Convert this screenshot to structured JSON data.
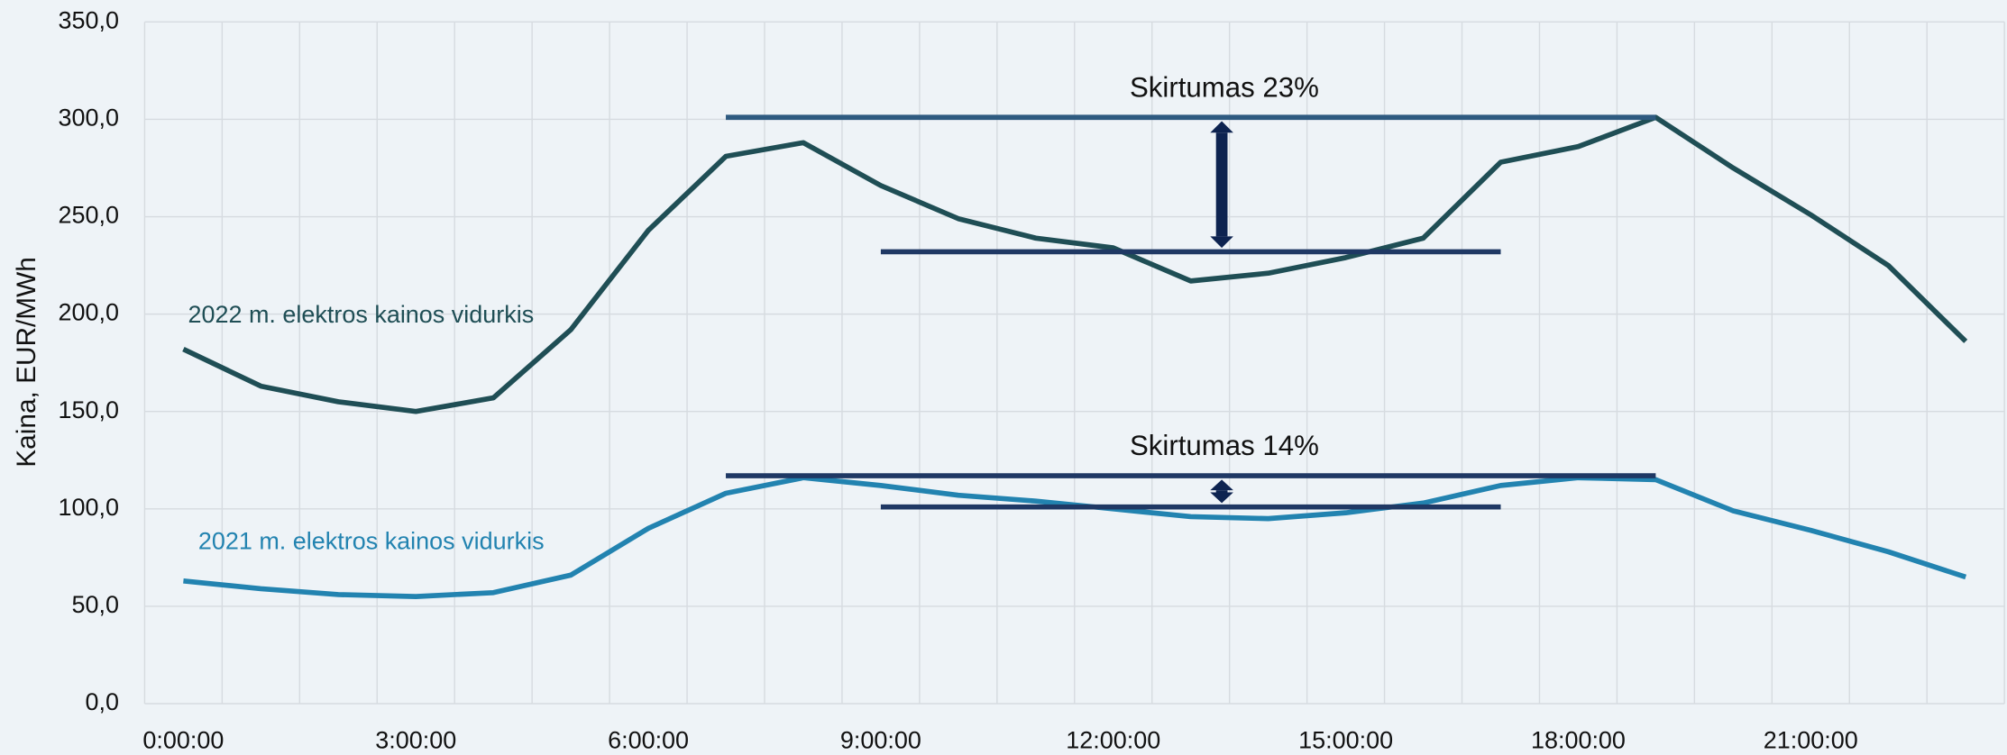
{
  "chart_data": {
    "type": "line",
    "y_label": "Kaina, EUR/MWh",
    "categories": [
      "0:00:00",
      null,
      null,
      "3:00:00",
      null,
      null,
      "6:00:00",
      null,
      null,
      "9:00:00",
      null,
      null,
      "12:00:00",
      null,
      null,
      "15:00:00",
      null,
      null,
      "18:00:00",
      null,
      null,
      "21:00:00",
      null,
      null
    ],
    "series": [
      {
        "name": "2022 m. elektros kainos vidurkis",
        "color": "#1f4e55",
        "values": [
          182,
          163,
          155,
          150,
          157,
          192,
          243,
          281,
          288,
          266,
          249,
          239,
          234,
          217,
          221,
          229,
          239,
          278,
          286,
          301,
          275,
          251,
          225,
          186
        ]
      },
      {
        "name": "2021 m. elektros kainos vidurkis",
        "color": "#2283b0",
        "values": [
          63,
          59,
          56,
          55,
          57,
          66,
          90,
          108,
          116,
          112,
          107,
          104,
          100,
          96,
          95,
          98,
          103,
          112,
          116,
          115,
          99,
          89,
          78,
          65
        ]
      }
    ],
    "comparisons": [
      {
        "label": "Skirtumas 23%",
        "peak": 301,
        "peak_from": 7,
        "peak_to": 19,
        "base": 232,
        "base_from": 9,
        "base_to": 17,
        "peak_color": "#2e5a80",
        "base_color": "#1f3864",
        "arrow_color": "#0d2350"
      },
      {
        "label": "Skirtumas 14%",
        "peak": 117,
        "peak_from": 7,
        "peak_to": 19,
        "base": 101,
        "base_from": 9,
        "base_to": 17,
        "peak_color": "#1f3864",
        "base_color": "#1f3864",
        "arrow_color": "#0d2350"
      }
    ],
    "ylim": [
      0,
      350
    ],
    "yticks": [
      {
        "value": 0,
        "label": "0,0"
      },
      {
        "value": 50,
        "label": "50,0"
      },
      {
        "value": 100,
        "label": "100,0"
      },
      {
        "value": 150,
        "label": "150,0"
      },
      {
        "value": 200,
        "label": "200,0"
      },
      {
        "value": 250,
        "label": "250,0"
      },
      {
        "value": 300,
        "label": "300,0"
      },
      {
        "value": 350,
        "label": "350,0"
      }
    ],
    "grid": true
  }
}
